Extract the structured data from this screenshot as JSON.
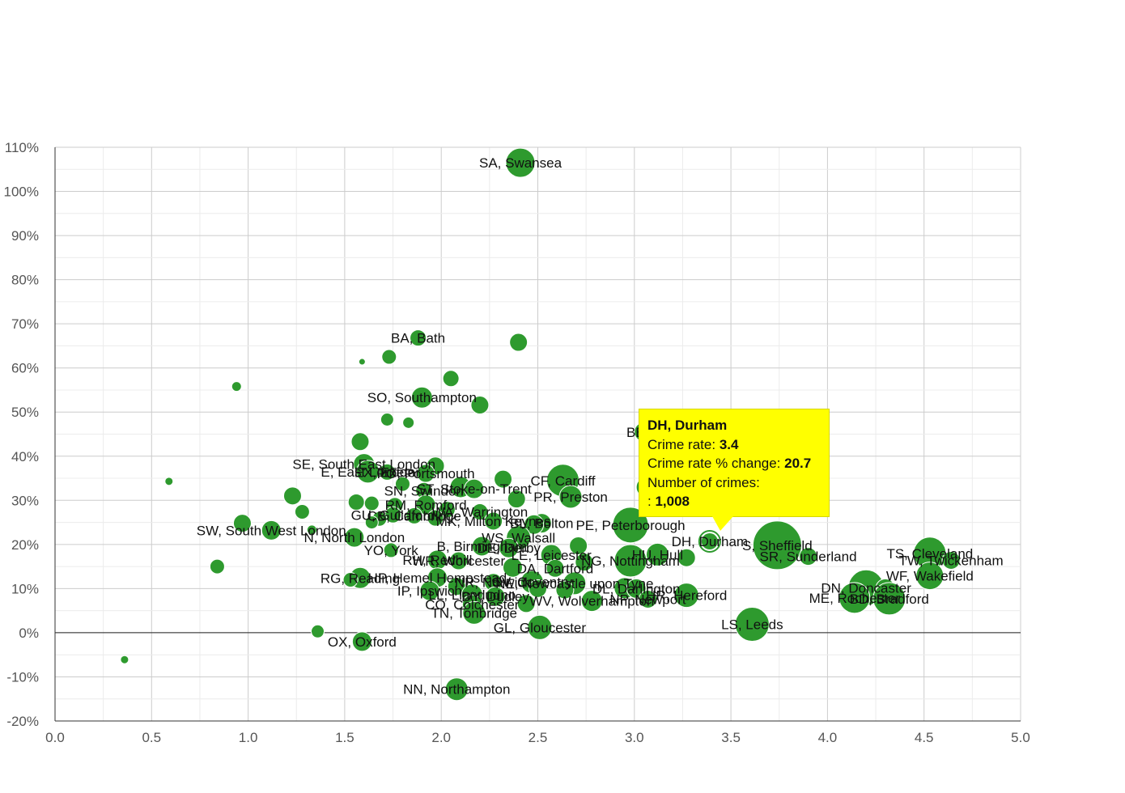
{
  "chart_data": {
    "type": "scatter",
    "bubble": true,
    "title": "",
    "xlabel": "",
    "ylabel": "",
    "xlim": [
      0,
      5
    ],
    "ylim": [
      -20,
      110
    ],
    "x_ticks": [
      "0.0",
      "0.5",
      "1.0",
      "1.5",
      "2.0",
      "2.5",
      "3.0",
      "3.5",
      "4.0",
      "4.5",
      "5.0"
    ],
    "y_ticks": [
      "110%",
      "100%",
      "90%",
      "80%",
      "70%",
      "60%",
      "50%",
      "40%",
      "30%",
      "20%",
      "10%",
      "0%",
      "-10%",
      "-20%"
    ],
    "grid": true,
    "bubble_color": "#2e9a2e",
    "points": [
      {
        "x": 2.41,
        "y": 106.5,
        "s": 18,
        "label": "SA, Swansea"
      },
      {
        "x": 1.88,
        "y": 66.8,
        "s": 10,
        "label": "BA, Bath"
      },
      {
        "x": 2.4,
        "y": 65.8,
        "s": 11,
        "label": ""
      },
      {
        "x": 1.73,
        "y": 62.5,
        "s": 9,
        "label": ""
      },
      {
        "x": 1.59,
        "y": 61.4,
        "s": 4,
        "label": ""
      },
      {
        "x": 2.05,
        "y": 57.6,
        "s": 10,
        "label": ""
      },
      {
        "x": 0.94,
        "y": 55.8,
        "s": 6,
        "label": ""
      },
      {
        "x": 1.9,
        "y": 53.3,
        "s": 13,
        "label": "SO, Southampton"
      },
      {
        "x": 2.2,
        "y": 51.6,
        "s": 11,
        "label": ""
      },
      {
        "x": 1.72,
        "y": 48.3,
        "s": 8,
        "label": ""
      },
      {
        "x": 1.83,
        "y": 47.6,
        "s": 7,
        "label": ""
      },
      {
        "x": 3.05,
        "y": 45.5,
        "s": 12,
        "label": "BB, B"
      },
      {
        "x": 1.58,
        "y": 43.3,
        "s": 11,
        "label": ""
      },
      {
        "x": 1.6,
        "y": 38.2,
        "s": 13,
        "label": "SE, South East London"
      },
      {
        "x": 1.97,
        "y": 37.8,
        "s": 11,
        "label": ""
      },
      {
        "x": 1.62,
        "y": 36.5,
        "s": 14,
        "label": "E, East London"
      },
      {
        "x": 1.72,
        "y": 36.4,
        "s": 10,
        "label": "EX, Exeter"
      },
      {
        "x": 1.92,
        "y": 36.1,
        "s": 11,
        "label": "PO, Portsmouth"
      },
      {
        "x": 0.59,
        "y": 34.3,
        "s": 5,
        "label": ""
      },
      {
        "x": 2.63,
        "y": 34.5,
        "s": 20,
        "label": "CF, Cardiff"
      },
      {
        "x": 2.32,
        "y": 34.8,
        "s": 11,
        "label": ""
      },
      {
        "x": 1.8,
        "y": 33.7,
        "s": 9,
        "label": ""
      },
      {
        "x": 2.1,
        "y": 33.0,
        "s": 13,
        "label": ""
      },
      {
        "x": 2.17,
        "y": 32.6,
        "s": 12,
        "label": "ST, Stoke-on-Trent"
      },
      {
        "x": 1.91,
        "y": 32.2,
        "s": 10,
        "label": "SN, Swindon"
      },
      {
        "x": 3.06,
        "y": 33.0,
        "s": 12,
        "label": "L,"
      },
      {
        "x": 1.23,
        "y": 31.0,
        "s": 11,
        "label": ""
      },
      {
        "x": 2.67,
        "y": 30.8,
        "s": 14,
        "label": "PR, Preston"
      },
      {
        "x": 2.39,
        "y": 30.3,
        "s": 11,
        "label": ""
      },
      {
        "x": 1.56,
        "y": 29.6,
        "s": 10,
        "label": ""
      },
      {
        "x": 1.64,
        "y": 29.3,
        "s": 9,
        "label": ""
      },
      {
        "x": 1.92,
        "y": 29.0,
        "s": 12,
        "label": "RM, Romford"
      },
      {
        "x": 1.76,
        "y": 28.8,
        "s": 10,
        "label": ""
      },
      {
        "x": 2.03,
        "y": 27.9,
        "s": 10,
        "label": ""
      },
      {
        "x": 2.2,
        "y": 27.4,
        "s": 10,
        "label": "WA, Warrington"
      },
      {
        "x": 1.28,
        "y": 27.4,
        "s": 9,
        "label": ""
      },
      {
        "x": 1.75,
        "y": 26.7,
        "s": 10,
        "label": "GU, Guildford"
      },
      {
        "x": 1.86,
        "y": 26.5,
        "s": 10,
        "label": "CB, Cambridge"
      },
      {
        "x": 1.97,
        "y": 26.0,
        "s": 10,
        "label": ""
      },
      {
        "x": 1.68,
        "y": 25.8,
        "s": 9,
        "label": ""
      },
      {
        "x": 1.64,
        "y": 25.0,
        "s": 8,
        "label": ""
      },
      {
        "x": 2.27,
        "y": 25.3,
        "s": 11,
        "label": "MK, Milton Keynes"
      },
      {
        "x": 2.52,
        "y": 24.8,
        "s": 12,
        "label": "BL, Bolton"
      },
      {
        "x": 2.98,
        "y": 24.4,
        "s": 22,
        "label": "PE, Peterborough"
      },
      {
        "x": 2.48,
        "y": 24.5,
        "s": 12,
        "label": ""
      },
      {
        "x": 0.97,
        "y": 24.8,
        "s": 11,
        "label": ""
      },
      {
        "x": 1.12,
        "y": 23.2,
        "s": 12,
        "label": "SW, South West London"
      },
      {
        "x": 1.33,
        "y": 23.3,
        "s": 6,
        "label": ""
      },
      {
        "x": 1.55,
        "y": 21.6,
        "s": 12,
        "label": "N, North London"
      },
      {
        "x": 2.4,
        "y": 21.5,
        "s": 15,
        "label": "WS, Walsall"
      },
      {
        "x": 3.39,
        "y": 20.7,
        "s": 13,
        "label": "DH, Durham"
      },
      {
        "x": 3.74,
        "y": 19.8,
        "s": 30,
        "label": "S, Sheffield"
      },
      {
        "x": 2.21,
        "y": 19.6,
        "s": 12,
        "label": "B, Birmingham"
      },
      {
        "x": 2.35,
        "y": 19.2,
        "s": 12,
        "label": "DE, Derby"
      },
      {
        "x": 2.71,
        "y": 19.7,
        "s": 11,
        "label": ""
      },
      {
        "x": 1.74,
        "y": 18.7,
        "s": 9,
        "label": "YO, York"
      },
      {
        "x": 4.53,
        "y": 18.0,
        "s": 20,
        "label": "TS, Cleveland"
      },
      {
        "x": 2.57,
        "y": 17.6,
        "s": 13,
        "label": "LE, Leicester"
      },
      {
        "x": 3.12,
        "y": 17.7,
        "s": 14,
        "label": "HU, Hull"
      },
      {
        "x": 3.9,
        "y": 17.3,
        "s": 11,
        "label": "SR, Sunderland"
      },
      {
        "x": 3.27,
        "y": 17.0,
        "s": 11,
        "label": ""
      },
      {
        "x": 4.64,
        "y": 16.4,
        "s": 11,
        "label": "TW, Twickenham"
      },
      {
        "x": 2.98,
        "y": 16.3,
        "s": 20,
        "label": "NG, Nottingham"
      },
      {
        "x": 1.98,
        "y": 16.5,
        "s": 12,
        "label": "RH, Redhill"
      },
      {
        "x": 2.09,
        "y": 16.3,
        "s": 11,
        "label": "WR, Worcester"
      },
      {
        "x": 2.74,
        "y": 16.0,
        "s": 11,
        "label": ""
      },
      {
        "x": 2.37,
        "y": 14.8,
        "s": 12,
        "label": ""
      },
      {
        "x": 0.84,
        "y": 15.0,
        "s": 9,
        "label": ""
      },
      {
        "x": 2.59,
        "y": 14.6,
        "s": 11,
        "label": "DA, Dartford"
      },
      {
        "x": 4.53,
        "y": 12.9,
        "s": 17,
        "label": "WF, Wakefield"
      },
      {
        "x": 1.98,
        "y": 12.5,
        "s": 12,
        "label": "HP, Hemel Hempstead"
      },
      {
        "x": 1.58,
        "y": 12.4,
        "s": 13,
        "label": "RG, Reading"
      },
      {
        "x": 1.53,
        "y": 12.0,
        "s": 9,
        "label": ""
      },
      {
        "x": 2.47,
        "y": 11.5,
        "s": 14,
        "label": "CV, Coventry"
      },
      {
        "x": 2.27,
        "y": 11.4,
        "s": 11,
        "label": "NR, Norwich"
      },
      {
        "x": 2.69,
        "y": 11.2,
        "s": 14,
        "label": "NE, Newcastle upon Tyne"
      },
      {
        "x": 2.08,
        "y": 10.5,
        "s": 11,
        "label": ""
      },
      {
        "x": 2.95,
        "y": 10.1,
        "s": 13,
        "label": ""
      },
      {
        "x": 4.2,
        "y": 10.2,
        "s": 22,
        "label": "DN, Doncaster"
      },
      {
        "x": 4.3,
        "y": 10.0,
        "s": 12,
        "label": ""
      },
      {
        "x": 3.01,
        "y": 10.0,
        "s": 12,
        "label": "DL, Darlington"
      },
      {
        "x": 1.94,
        "y": 9.5,
        "s": 12,
        "label": "IP, Ipswich"
      },
      {
        "x": 2.5,
        "y": 10.0,
        "s": 11,
        "label": ""
      },
      {
        "x": 2.64,
        "y": 9.7,
        "s": 11,
        "label": ""
      },
      {
        "x": 4.14,
        "y": 7.9,
        "s": 19,
        "label": "ME, Rochester"
      },
      {
        "x": 4.32,
        "y": 7.7,
        "s": 20,
        "label": "BD, Bradford"
      },
      {
        "x": 3.27,
        "y": 8.5,
        "s": 15,
        "label": "HR, Hereford"
      },
      {
        "x": 2.16,
        "y": 8.6,
        "s": 13,
        "label": "LL, Llandudno"
      },
      {
        "x": 2.28,
        "y": 8.2,
        "s": 12,
        "label": "DY, Dudley"
      },
      {
        "x": 3.07,
        "y": 7.6,
        "s": 11,
        "label": "NP, Newport"
      },
      {
        "x": 2.78,
        "y": 7.2,
        "s": 13,
        "label": "WV, Wolverhampton"
      },
      {
        "x": 2.16,
        "y": 6.4,
        "s": 12,
        "label": "CO, Colchester"
      },
      {
        "x": 2.44,
        "y": 6.6,
        "s": 11,
        "label": ""
      },
      {
        "x": 2.17,
        "y": 4.5,
        "s": 14,
        "label": "TN, Tonbridge"
      },
      {
        "x": 3.61,
        "y": 1.9,
        "s": 21,
        "label": "LS, Leeds"
      },
      {
        "x": 2.51,
        "y": 1.2,
        "s": 15,
        "label": "GL, Gloucester"
      },
      {
        "x": 1.36,
        "y": 0.3,
        "s": 8,
        "label": ""
      },
      {
        "x": 1.59,
        "y": -2.0,
        "s": 12,
        "label": "OX, Oxford"
      },
      {
        "x": 0.36,
        "y": -6.1,
        "s": 5,
        "label": ""
      },
      {
        "x": 2.08,
        "y": -12.8,
        "s": 14,
        "label": "NN, Northampton"
      }
    ]
  },
  "tooltip": {
    "title": "DH, Durham",
    "rate_label": "Crime rate:",
    "rate_value": "3.4",
    "change_label": "Crime rate % change:",
    "change_value": "20.7",
    "count_label": "Number of crimes:",
    "count_prefix": ":",
    "count_value": "1,008"
  }
}
